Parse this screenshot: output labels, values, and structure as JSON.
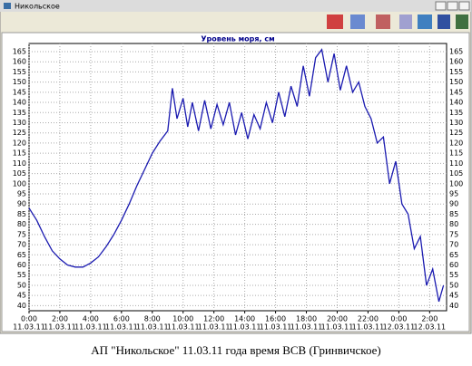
{
  "window_title": "Никольское",
  "caption": "АП \"Никольское\" 11.03.11 года время ВСВ (Гринвичское)",
  "chart_data": {
    "type": "line",
    "title": "Уровень моря, см",
    "x": [
      0,
      0.5,
      1,
      1.5,
      2,
      2.5,
      3,
      3.5,
      4,
      4.5,
      5,
      5.5,
      6,
      6.5,
      7,
      7.5,
      8,
      8.5,
      9,
      9.3,
      9.6,
      10,
      10.3,
      10.6,
      11,
      11.4,
      11.8,
      12.2,
      12.6,
      13,
      13.4,
      13.8,
      14.2,
      14.6,
      15,
      15.4,
      15.8,
      16.2,
      16.6,
      17,
      17.4,
      17.8,
      18.2,
      18.6,
      19,
      19.4,
      19.8,
      20.2,
      20.6,
      21,
      21.4,
      21.8,
      22.2,
      22.6,
      23,
      23.4,
      23.8,
      24.2,
      24.6,
      25,
      25.4,
      25.8,
      26.2,
      26.6,
      26.9
    ],
    "series": [
      {
        "name": "Уровень моря",
        "color": "#1a1ab0",
        "values": [
          88,
          82,
          74,
          67,
          63,
          60,
          59,
          59,
          61,
          64,
          69,
          75,
          82,
          90,
          99,
          107,
          115,
          121,
          126,
          147,
          132,
          142,
          128,
          140,
          126,
          141,
          127,
          139,
          129,
          140,
          124,
          135,
          122,
          134,
          127,
          140,
          130,
          145,
          133,
          148,
          138,
          158,
          143,
          162,
          166,
          150,
          164,
          146,
          158,
          145,
          150,
          138,
          132,
          120,
          123,
          100,
          111,
          90,
          85,
          68,
          74,
          50,
          58,
          42,
          50
        ]
      }
    ],
    "xlim": [
      0,
      27.1
    ],
    "xticks": [
      {
        "value": 0,
        "label": "0:00"
      },
      {
        "value": 2,
        "label": "2:00"
      },
      {
        "value": 4,
        "label": "4:00"
      },
      {
        "value": 6,
        "label": "6:00"
      },
      {
        "value": 8,
        "label": "8:00"
      },
      {
        "value": 10,
        "label": "10:00"
      },
      {
        "value": 12,
        "label": "12:00"
      },
      {
        "value": 14,
        "label": "14:00"
      },
      {
        "value": 16,
        "label": "16:00"
      },
      {
        "value": 18,
        "label": "18:00"
      },
      {
        "value": 20,
        "label": "20:00"
      },
      {
        "value": 22,
        "label": "22:00"
      },
      {
        "value": 24,
        "label": "0:00"
      },
      {
        "value": 26,
        "label": "2:00"
      }
    ],
    "xtick_dates": [
      "11.03.11",
      "11.03.11",
      "11.03.11",
      "11.03.11",
      "11.03.11",
      "11.03.11",
      "11.03.11",
      "11.03.11",
      "11.03.11",
      "11.03.11",
      "11.03.11",
      "11.03.11",
      "12.03.11",
      "12.03.11"
    ],
    "ylim": [
      37.5,
      169
    ],
    "yticks": [
      40,
      45,
      50,
      55,
      60,
      65,
      70,
      75,
      80,
      85,
      90,
      95,
      100,
      105,
      110,
      115,
      120,
      125,
      130,
      135,
      140,
      145,
      150,
      155,
      160,
      165
    ],
    "grid": true
  }
}
